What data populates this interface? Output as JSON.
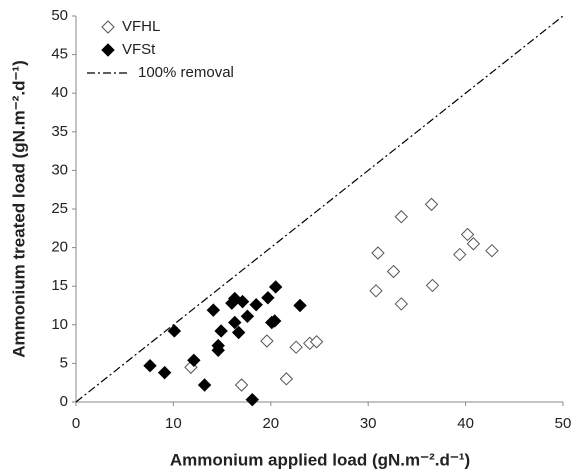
{
  "chart_data": {
    "type": "scatter",
    "xlabel": "Ammonium applied load (gN.m⁻².d⁻¹)",
    "ylabel": "Ammonium treated load (gN.m⁻².d⁻¹)",
    "xlim": [
      0,
      50
    ],
    "xticks": [
      0,
      10,
      20,
      30,
      40,
      50
    ],
    "ylim": [
      0,
      50
    ],
    "yticks": [
      0,
      5,
      10,
      15,
      20,
      25,
      30,
      35,
      40,
      45,
      50
    ],
    "grid": false,
    "legend": "upper left",
    "series": [
      {
        "name": "VFHL",
        "color": "#555555",
        "marker": "open-diamond",
        "x": [
          11.8,
          17.0,
          19.6,
          21.6,
          22.6,
          24.0,
          24.7,
          30.8,
          31.0,
          32.6,
          33.4,
          33.4,
          36.5,
          36.6,
          39.4,
          40.2,
          40.8,
          42.7
        ],
        "values": [
          4.5,
          2.2,
          7.9,
          3.0,
          7.1,
          7.6,
          7.8,
          14.4,
          19.3,
          16.9,
          24.0,
          12.7,
          25.6,
          15.1,
          19.1,
          21.7,
          20.5,
          19.6
        ]
      },
      {
        "name": "VFSt",
        "color": "#000000",
        "marker": "filled-diamond",
        "x": [
          7.6,
          9.1,
          10.1,
          12.1,
          13.2,
          14.1,
          14.6,
          14.6,
          14.9,
          16.0,
          16.3,
          16.3,
          16.7,
          17.1,
          17.6,
          18.1,
          18.5,
          19.7,
          20.1,
          20.4,
          20.5,
          23.0
        ],
        "values": [
          4.7,
          3.8,
          9.2,
          5.4,
          2.2,
          11.9,
          7.3,
          6.7,
          9.2,
          12.8,
          13.4,
          10.3,
          9.0,
          13.0,
          11.1,
          0.3,
          12.6,
          13.5,
          10.3,
          10.5,
          14.9,
          12.5
        ]
      },
      {
        "name": "100% removal",
        "color": "#000000",
        "marker": "dash-dot-line",
        "x": [
          0,
          50
        ],
        "values": [
          0,
          50
        ]
      }
    ]
  }
}
